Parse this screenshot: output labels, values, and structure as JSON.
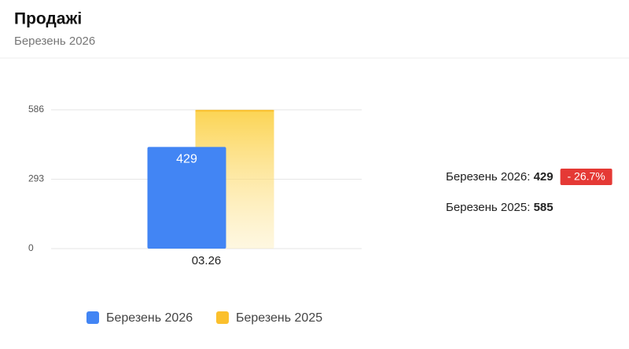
{
  "chart_data": {
    "type": "bar",
    "title": "Продажі",
    "subtitle": "Березень 2026",
    "categories": [
      "03.26"
    ],
    "series": [
      {
        "name": "Березень 2026",
        "color": "#4285f4",
        "values": [
          429
        ],
        "show_labels": true
      },
      {
        "name": "Березень 2025",
        "color": "#fbc02d",
        "values": [
          585
        ],
        "show_labels": false
      }
    ],
    "ylim": [
      0,
      586
    ],
    "yticks": [
      0,
      293,
      586
    ],
    "grid": true,
    "legend": "bottom",
    "summary": [
      {
        "label": "Березень 2026:",
        "value": 429,
        "change": -26.7,
        "change_label": "- 26.7%"
      },
      {
        "label": "Березень 2025:",
        "value": 585
      }
    ]
  }
}
